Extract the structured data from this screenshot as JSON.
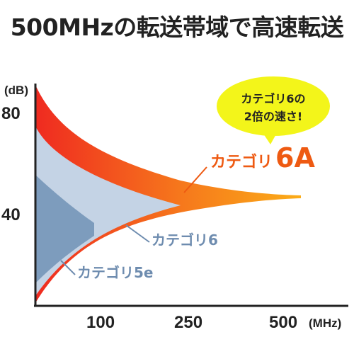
{
  "headline": "500MHzの転送帯域で高速転送",
  "callout": {
    "line1": "カテゴリ6の",
    "line2": "2倍の速さ!"
  },
  "colors": {
    "cat6a_top": "#ef2a20",
    "cat6a_mid": "#f6781c",
    "cat6a_end": "#fbac18",
    "cat6": "#c4d3e5",
    "cat5e": "#7d9cbd",
    "label_6a": "#ee5a12",
    "label_other": "#6e8caf",
    "bubble": "#f3f51a"
  },
  "chart_data": {
    "type": "area",
    "ylabel": "(dB)",
    "xlabel": "(MHz)",
    "x_ticks": [
      "100",
      "250",
      "500"
    ],
    "y_ticks": [
      "80",
      "40"
    ],
    "series": [
      {
        "name": "カテゴリ6A",
        "name_prefix": "カテゴリ",
        "name_suffix": "6A",
        "bandwidth_mhz": 500,
        "convergence_db": 44
      },
      {
        "name": "カテゴリ6",
        "bandwidth_mhz": 250,
        "convergence_db": 43
      },
      {
        "name": "カテゴリ5e",
        "bandwidth_mhz": 100,
        "convergence_db": 40
      }
    ]
  }
}
